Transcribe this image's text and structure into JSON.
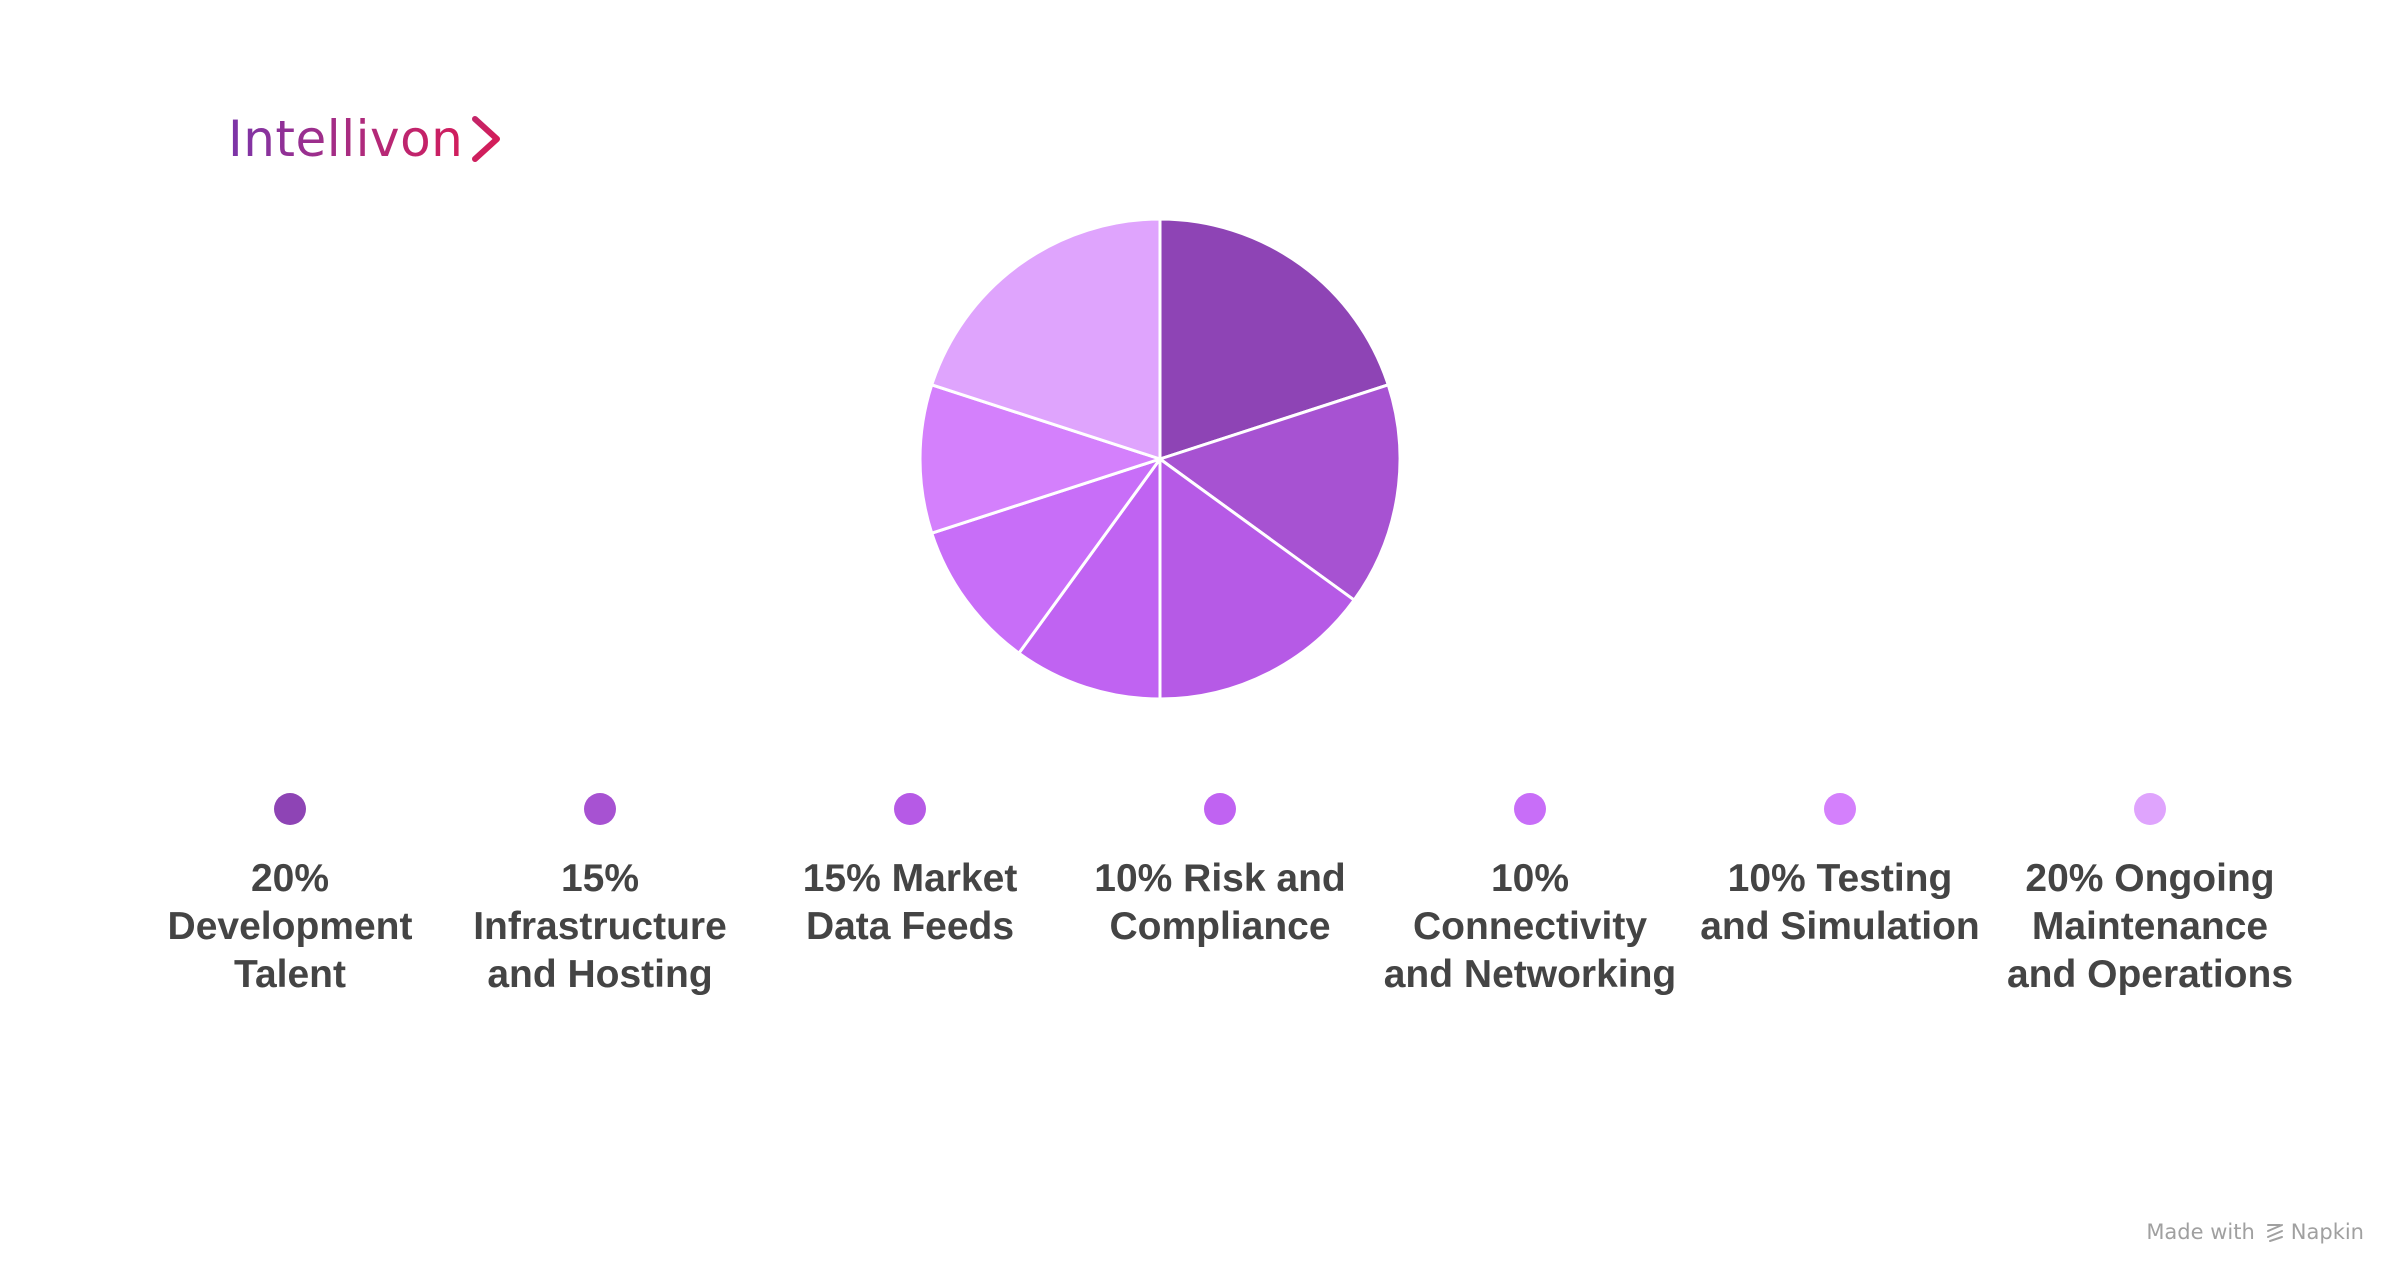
{
  "brand": {
    "name": "Intellivon"
  },
  "chart_data": {
    "type": "pie",
    "categories": [
      "Development Talent",
      "Infrastructure and Hosting",
      "Market Data Feeds",
      "Risk and Compliance",
      "Connectivity and Networking",
      "Testing and Simulation",
      "Ongoing Maintenance and Operations"
    ],
    "values": [
      20,
      15,
      15,
      10,
      10,
      10,
      20
    ],
    "labels": [
      "20% Development Talent",
      "15% Infrastructure and Hosting",
      "15% Market Data Feeds",
      "10% Risk and Compliance",
      "10% Connectivity and Networking",
      "10% Testing and Simulation",
      "20% Ongoing Maintenance and Operations"
    ],
    "colors": [
      "#8e44b5",
      "#a752d2",
      "#b65ae6",
      "#c063f2",
      "#c86ef8",
      "#d480fc",
      "#dfa4fd"
    ],
    "legend_position": "bottom"
  },
  "footer": {
    "made_with": "Made with",
    "tool": "Napkin"
  }
}
